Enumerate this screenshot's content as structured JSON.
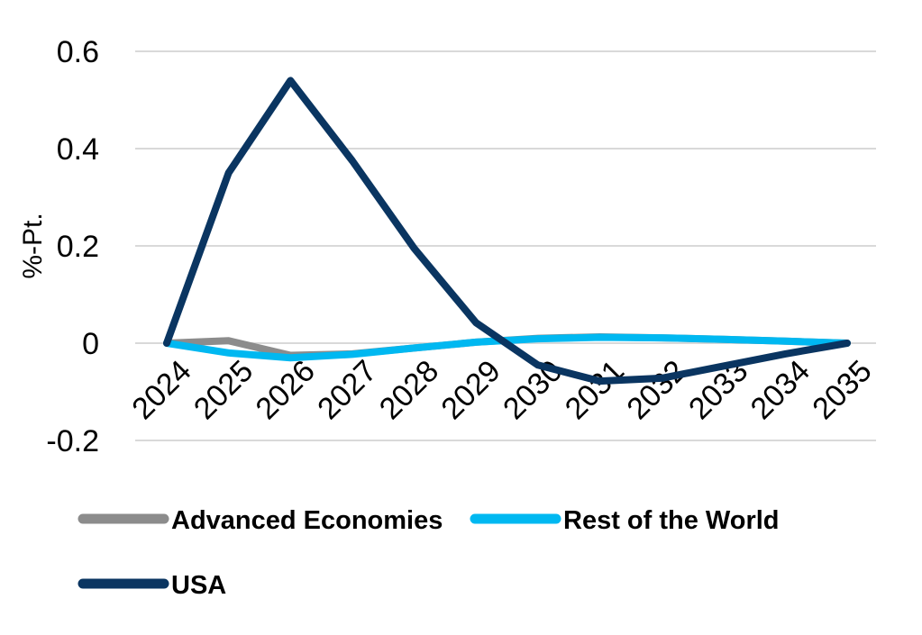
{
  "chart_data": {
    "type": "line",
    "categories": [
      "2024",
      "2025",
      "2026",
      "2027",
      "2028",
      "2029",
      "2030",
      "2031",
      "2032",
      "2033",
      "2034",
      "2035"
    ],
    "ylabel": "%-Pt.",
    "ylim": [
      -0.2,
      0.6
    ],
    "yticks": [
      "-0.2",
      "0",
      "0.2",
      "0.4",
      "0.6"
    ],
    "grid": true,
    "legend_position": "bottom",
    "series": [
      {
        "name": "Advanced Economies",
        "color": "#8c8c8c",
        "values": [
          0,
          0.005,
          -0.025,
          -0.022,
          -0.01,
          0.002,
          0.01,
          0.013,
          0.011,
          0.008,
          0.004,
          0
        ]
      },
      {
        "name": "Rest of the World",
        "color": "#00b8f1",
        "values": [
          0,
          -0.02,
          -0.03,
          -0.023,
          -0.01,
          0.002,
          0.009,
          0.012,
          0.011,
          0.008,
          0.004,
          0
        ]
      },
      {
        "name": "USA",
        "color": "#0a3561",
        "values": [
          0,
          0.35,
          0.54,
          0.375,
          0.195,
          0.042,
          -0.045,
          -0.078,
          -0.072,
          -0.047,
          -0.022,
          0
        ]
      }
    ]
  }
}
